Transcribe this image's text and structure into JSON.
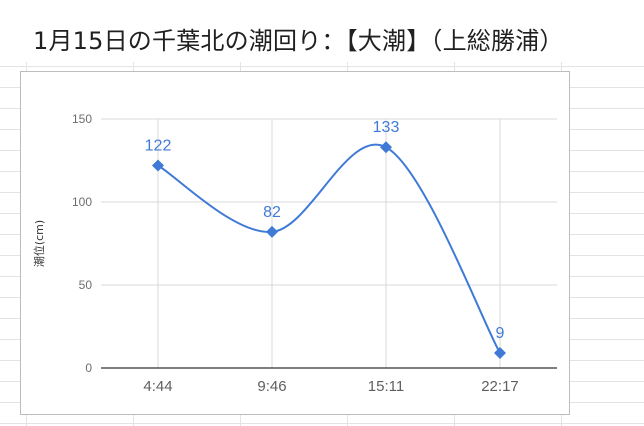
{
  "title": "1月15日の千葉北の潮回り：【大潮】（上総勝浦）",
  "colors": {
    "series": "#3f7ad6",
    "grid": "#d9d9d9",
    "baseline": "#333333"
  },
  "chart_data": {
    "type": "line",
    "title": "",
    "xlabel": "",
    "ylabel": "潮位(cm)",
    "categories": [
      "4:44",
      "9:46",
      "15:11",
      "22:17"
    ],
    "series": [
      {
        "values": [
          122,
          82,
          133,
          9
        ]
      }
    ],
    "yticks": [
      0,
      50,
      100,
      150
    ],
    "ylim": [
      0,
      150
    ],
    "grid": true,
    "smooth": true,
    "marker": "diamond",
    "data_labels": true,
    "legend": "none"
  }
}
